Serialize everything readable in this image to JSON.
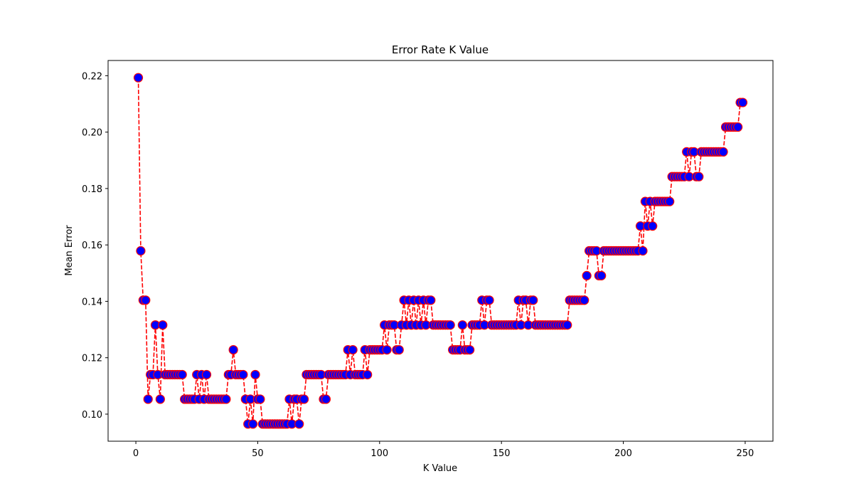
{
  "chart_data": {
    "type": "line",
    "title": "Error Rate K Value",
    "x_label": "K Value",
    "y_label": "Mean Error",
    "color": "#ff0000",
    "marker_color": "#0000ff",
    "line_style": "dashed",
    "marker": "circle",
    "xlim": [
      -11.4,
      261.4
    ],
    "xticks": [
      0,
      50,
      100,
      150,
      200,
      250
    ],
    "ylim": [
      0.0904,
      0.2254
    ],
    "yticks": [
      {
        "value": 0.1,
        "label": "0.10"
      },
      0.12,
      0.14,
      0.16,
      0.18,
      {
        "value": 0.2,
        "label": "0.20"
      },
      0.22
    ],
    "x": [
      1,
      2,
      3,
      4,
      5,
      6,
      7,
      8,
      9,
      10,
      11,
      12,
      13,
      14,
      15,
      16,
      17,
      18,
      19,
      20,
      21,
      22,
      23,
      24,
      25,
      26,
      27,
      28,
      29,
      30,
      31,
      32,
      33,
      34,
      35,
      36,
      37,
      38,
      39,
      40,
      41,
      42,
      43,
      44,
      45,
      46,
      47,
      48,
      49,
      50,
      51,
      52,
      53,
      54,
      55,
      56,
      57,
      58,
      59,
      60,
      61,
      62,
      63,
      64,
      65,
      66,
      67,
      68,
      69,
      70,
      71,
      72,
      73,
      74,
      75,
      76,
      77,
      78,
      79,
      80,
      81,
      82,
      83,
      84,
      85,
      86,
      87,
      88,
      89,
      90,
      91,
      92,
      93,
      94,
      95,
      96,
      97,
      98,
      99,
      100,
      101,
      102,
      103,
      104,
      105,
      106,
      107,
      108,
      109,
      110,
      111,
      112,
      113,
      114,
      115,
      116,
      117,
      118,
      119,
      120,
      121,
      122,
      123,
      124,
      125,
      126,
      127,
      128,
      129,
      130,
      131,
      132,
      133,
      134,
      135,
      136,
      137,
      138,
      139,
      140,
      141,
      142,
      143,
      144,
      145,
      146,
      147,
      148,
      149,
      150,
      151,
      152,
      153,
      154,
      155,
      156,
      157,
      158,
      159,
      160,
      161,
      162,
      163,
      164,
      165,
      166,
      167,
      168,
      169,
      170,
      171,
      172,
      173,
      174,
      175,
      176,
      177,
      178,
      179,
      180,
      181,
      182,
      183,
      184,
      185,
      186,
      187,
      188,
      189,
      190,
      191,
      192,
      193,
      194,
      195,
      196,
      197,
      198,
      199,
      200,
      201,
      202,
      203,
      204,
      205,
      206,
      207,
      208,
      209,
      210,
      211,
      212,
      213,
      214,
      215,
      216,
      217,
      218,
      219,
      220,
      221,
      222,
      223,
      224,
      225,
      226,
      227,
      228,
      229,
      230,
      231,
      232,
      233,
      234,
      235,
      236,
      237,
      238,
      239,
      240,
      241,
      242,
      243,
      244,
      245,
      246,
      247,
      248,
      249
    ],
    "values": [
      0.2193,
      0.1579,
      0.1404,
      0.1404,
      0.1053,
      0.114,
      0.114,
      0.1316,
      0.114,
      0.1053,
      0.1316,
      0.114,
      0.114,
      0.114,
      0.114,
      0.114,
      0.114,
      0.114,
      0.114,
      0.1053,
      0.1053,
      0.1053,
      0.1053,
      0.1053,
      0.114,
      0.1053,
      0.114,
      0.1053,
      0.114,
      0.1053,
      0.1053,
      0.1053,
      0.1053,
      0.1053,
      0.1053,
      0.1053,
      0.1053,
      0.114,
      0.114,
      0.1228,
      0.114,
      0.114,
      0.114,
      0.114,
      0.1053,
      0.0965,
      0.1053,
      0.0965,
      0.114,
      0.1053,
      0.1053,
      0.0965,
      0.0965,
      0.0965,
      0.0965,
      0.0965,
      0.0965,
      0.0965,
      0.0965,
      0.0965,
      0.0965,
      0.0965,
      0.1053,
      0.0965,
      0.1053,
      0.1053,
      0.0965,
      0.1053,
      0.1053,
      0.114,
      0.114,
      0.114,
      0.114,
      0.114,
      0.114,
      0.114,
      0.1053,
      0.1053,
      0.114,
      0.114,
      0.114,
      0.114,
      0.114,
      0.114,
      0.114,
      0.114,
      0.1228,
      0.114,
      0.1228,
      0.114,
      0.114,
      0.114,
      0.114,
      0.1228,
      0.114,
      0.1228,
      0.1228,
      0.1228,
      0.1228,
      0.1228,
      0.1228,
      0.1316,
      0.1228,
      0.1316,
      0.1316,
      0.1316,
      0.1228,
      0.1228,
      0.1316,
      0.1404,
      0.1316,
      0.1404,
      0.1316,
      0.1404,
      0.1316,
      0.1404,
      0.1316,
      0.1404,
      0.1316,
      0.1404,
      0.1404,
      0.1316,
      0.1316,
      0.1316,
      0.1316,
      0.1316,
      0.1316,
      0.1316,
      0.1316,
      0.1228,
      0.1228,
      0.1228,
      0.1228,
      0.1316,
      0.1228,
      0.1228,
      0.1228,
      0.1316,
      0.1316,
      0.1316,
      0.1316,
      0.1404,
      0.1316,
      0.1404,
      0.1404,
      0.1316,
      0.1316,
      0.1316,
      0.1316,
      0.1316,
      0.1316,
      0.1316,
      0.1316,
      0.1316,
      0.1316,
      0.1316,
      0.1404,
      0.1316,
      0.1404,
      0.1404,
      0.1316,
      0.1404,
      0.1404,
      0.1316,
      0.1316,
      0.1316,
      0.1316,
      0.1316,
      0.1316,
      0.1316,
      0.1316,
      0.1316,
      0.1316,
      0.1316,
      0.1316,
      0.1316,
      0.1316,
      0.1404,
      0.1404,
      0.1404,
      0.1404,
      0.1404,
      0.1404,
      0.1404,
      0.1491,
      0.1579,
      0.1579,
      0.1579,
      0.1579,
      0.1491,
      0.1491,
      0.1579,
      0.1579,
      0.1579,
      0.1579,
      0.1579,
      0.1579,
      0.1579,
      0.1579,
      0.1579,
      0.1579,
      0.1579,
      0.1579,
      0.1579,
      0.1579,
      0.1579,
      0.1667,
      0.1579,
      0.1754,
      0.1667,
      0.1754,
      0.1667,
      0.1754,
      0.1754,
      0.1754,
      0.1754,
      0.1754,
      0.1754,
      0.1754,
      0.1842,
      0.1842,
      0.1842,
      0.1842,
      0.1842,
      0.1842,
      0.193,
      0.1842,
      0.193,
      0.193,
      0.1842,
      0.1842,
      0.193,
      0.193,
      0.193,
      0.193,
      0.193,
      0.193,
      0.193,
      0.193,
      0.193,
      0.193,
      0.2018,
      0.2018,
      0.2018,
      0.2018,
      0.2018,
      0.2018,
      0.2105,
      0.2105
    ]
  }
}
